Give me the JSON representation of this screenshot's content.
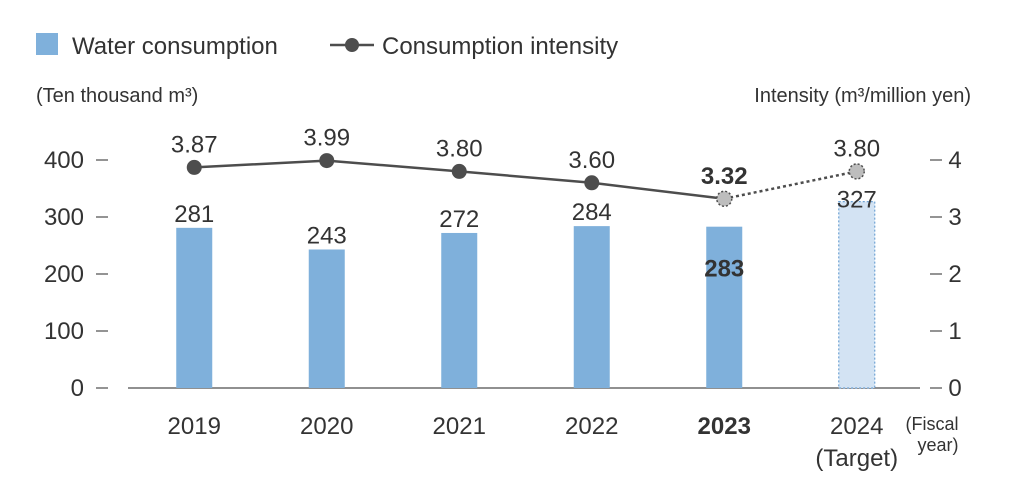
{
  "colors": {
    "bar": "#7FB0DB",
    "bar_target": "#D3E3F3",
    "bar_target_border": "#6FA3D4",
    "line": "#4d4d4d",
    "marker": "#4d4d4d",
    "marker_target_fill": "#bdbdbd",
    "axis": "#4d4d4d",
    "text": "#333333"
  },
  "chart_data": {
    "type": "bar",
    "title": "",
    "legend": {
      "position": "top-left",
      "bar_label": "Water consumption",
      "line_label": "Consumption intensity"
    },
    "ylabel_left": "(Ten thousand m³)",
    "ylabel_right": "Intensity (m³/million yen)",
    "xlabel_note_line1": "(Fiscal",
    "xlabel_note_line2": "year)",
    "ylim_left": [
      0,
      400
    ],
    "ylim_right": [
      0,
      4
    ],
    "yticks_left": [
      "0",
      "100",
      "200",
      "300",
      "400"
    ],
    "yticks_right": [
      "0",
      "1",
      "2",
      "3",
      "4"
    ],
    "categories": [
      {
        "label": "2019",
        "sub": "",
        "bold": false
      },
      {
        "label": "2020",
        "sub": "",
        "bold": false
      },
      {
        "label": "2021",
        "sub": "",
        "bold": false
      },
      {
        "label": "2022",
        "sub": "",
        "bold": false
      },
      {
        "label": "2023",
        "sub": "",
        "bold": true
      },
      {
        "label": "2024",
        "sub": "(Target)",
        "bold": false
      }
    ],
    "series": [
      {
        "name": "Water consumption",
        "kind": "bar",
        "values": [
          281,
          243,
          272,
          284,
          283,
          327
        ],
        "labels": [
          "281",
          "243",
          "272",
          "284",
          "283",
          "327"
        ],
        "target_index": 5
      },
      {
        "name": "Consumption intensity",
        "kind": "line",
        "axis": "right",
        "values": [
          3.87,
          3.99,
          3.8,
          3.6,
          3.32,
          3.8
        ],
        "labels": [
          "3.87",
          "3.99",
          "3.80",
          "3.60",
          "3.32",
          "3.80"
        ],
        "target_index": 5
      }
    ],
    "grid": false
  }
}
